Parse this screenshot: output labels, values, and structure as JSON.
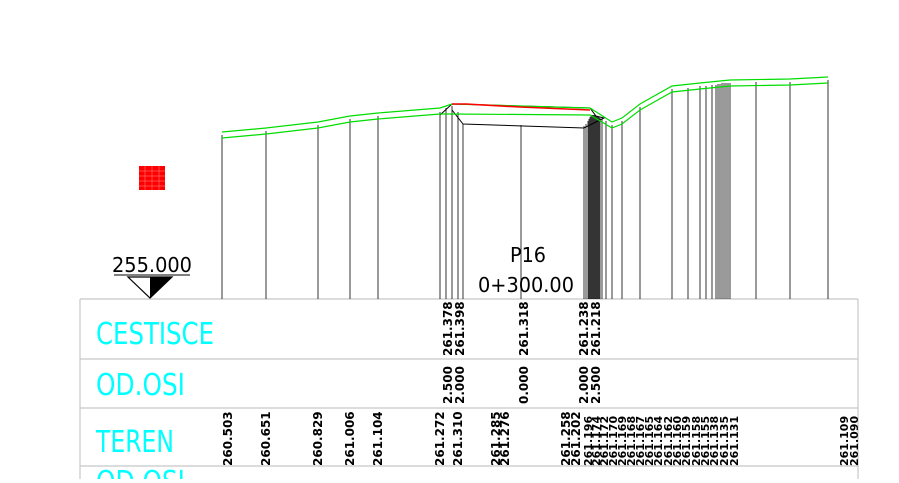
{
  "datum": "255.000",
  "profile": {
    "name": "P16",
    "station": "0+300.00"
  },
  "rows": {
    "cestisce": "CESTISCE",
    "od_osi": "OD.OSI",
    "teren": "TEREN",
    "od_osi_2": "OD.OSI"
  },
  "cestisce_values": [
    "261.378",
    "261.398",
    "261.318",
    "261.238",
    "261.218"
  ],
  "od_osi_values": [
    "2.500",
    "2.000",
    "0.000",
    "2.000",
    "2.500"
  ],
  "teren_values": [
    "260.503",
    "260.651",
    "260.829",
    "261.006",
    "261.104",
    "261.272",
    "261.310",
    "261.285",
    "261.276",
    "261.258",
    "261.202",
    "261.196",
    "261.174",
    "261.172",
    "261.170",
    "261.169",
    "261.168",
    "261.167",
    "261.165",
    "261.164",
    "261.162",
    "261.160",
    "261.159",
    "261.158",
    "261.155",
    "261.138",
    "261.135",
    "261.131",
    "261.109",
    "261.090"
  ],
  "colors": {
    "terrain_line": "#00dd00",
    "road_surface": "#ff0000",
    "row_label": "#00ffff",
    "section_lines": "#000000",
    "marker": "#ff0000",
    "grid": "#c8c8c8"
  }
}
